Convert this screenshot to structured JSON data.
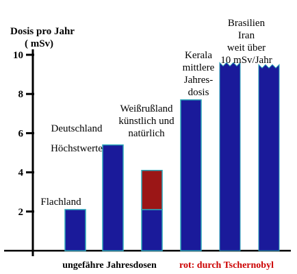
{
  "chart_data": {
    "type": "bar",
    "ylabel": [
      "Dosis pro Jahr",
      "( mSv)"
    ],
    "ylim": [
      0,
      10
    ],
    "yticks": [
      2,
      4,
      6,
      8,
      10
    ],
    "x_caption": "ungefähre Jahresdosen",
    "legend_note": "rot: durch Tschernobyl",
    "categories": [
      {
        "label_lines": [
          "Flachland"
        ]
      },
      {
        "label_lines": [
          "Deutschland",
          "Höchstwerte"
        ]
      },
      {
        "label_lines": [
          "Weißrußland",
          "künstlich und",
          "natürlich"
        ]
      },
      {
        "label_lines": [
          "Kerala",
          "mittlere",
          "Jahres-",
          "dosis"
        ]
      },
      {
        "label_lines": [
          "Brasilien",
          "Iran",
          "weit über",
          "10 mSv/Jahr"
        ]
      },
      {
        "label_lines": []
      }
    ],
    "series": [
      {
        "values": [
          2.1,
          5.4,
          2.1,
          7.7,
          9.6,
          9.5
        ]
      },
      {
        "name": "durch Tschernobyl",
        "values": [
          0,
          0,
          2.0,
          0,
          0,
          0
        ]
      }
    ],
    "colors": {
      "natural": "#1a1a9a",
      "chernobyl": "#9b1616",
      "outline": "#2aa6b8",
      "caption": "#000000",
      "note": "#cc0000"
    }
  }
}
